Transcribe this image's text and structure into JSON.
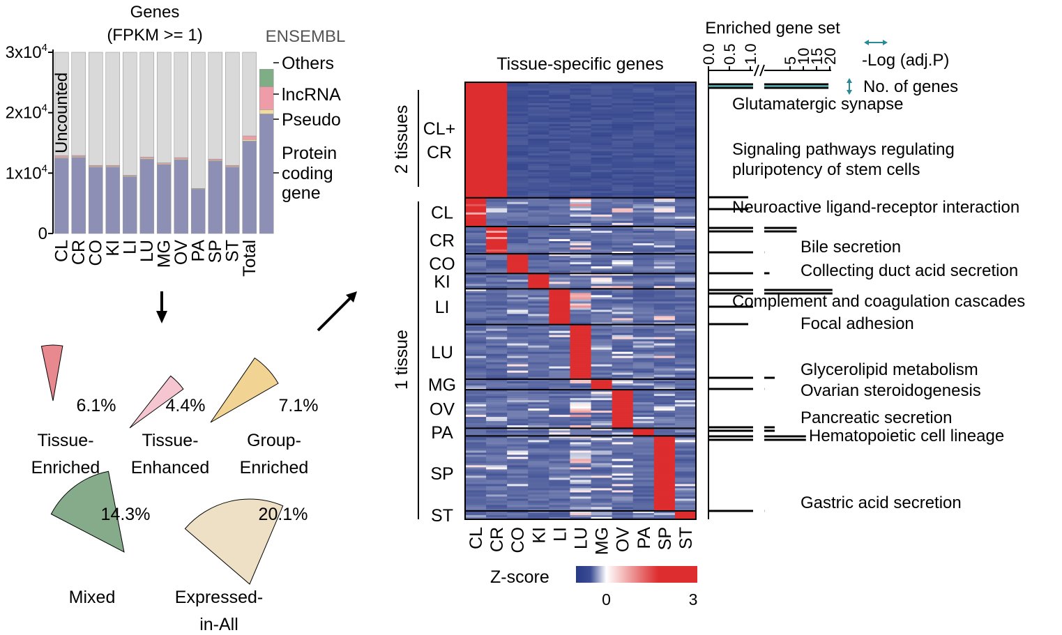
{
  "colors": {
    "protein": "#8e8fb4",
    "pseudo": "#f0dca0",
    "lncrna": "#ee9ca8",
    "others": "#7fad86",
    "uncounted": "#d9d9d9",
    "heat_low": "#283a86",
    "heat_mid": "#ffffff",
    "heat_high": "#de2d2f",
    "pathway_bar": "#4a9a9c",
    "tissue_enriched": "#e8888f",
    "tissue_enhanced": "#f5c6d0",
    "group_enriched": "#f1d494",
    "mixed": "#86ab8a",
    "expressed_in_all": "#eee0c4",
    "arrow_double_h": "#2a8a94",
    "arrow_double_v": "#2a8a94"
  },
  "panel_a": {
    "title_line1": "Genes",
    "title_line2": "(FPKM >= 1)",
    "source_label": "ENSEMBL",
    "y_ticks": [
      {
        "value": 30000,
        "base": "3x10",
        "exp": "4"
      },
      {
        "value": 20000,
        "base": "2x10",
        "exp": "4"
      },
      {
        "value": 10000,
        "base": "1x10",
        "exp": "4"
      },
      {
        "value": 0,
        "base": "0",
        "exp": ""
      }
    ],
    "uncounted_label": "Uncounted",
    "legend": {
      "others": "Others",
      "lncrna": "lncRNA",
      "pseudo": "Pseudo",
      "protein_line1": "Protein",
      "protein_line2": "coding",
      "protein_line3": "gene"
    }
  },
  "arrow_icons": {
    "down": "arrow-down-icon",
    "diagonal": "arrow-up-right-icon"
  },
  "categories": [
    {
      "key": "tissue_enriched",
      "label_line1": "Tissue-",
      "label_line2": "Enriched",
      "percent_label": "6.1%"
    },
    {
      "key": "tissue_enhanced",
      "label_line1": "Tissue-",
      "label_line2": "Enhanced",
      "percent_label": "4.4%"
    },
    {
      "key": "group_enriched",
      "label_line1": "Group-",
      "label_line2": "Enriched",
      "percent_label": "7.1%"
    },
    {
      "key": "mixed",
      "label_line1": "Mixed",
      "label_line2": "",
      "percent_label": "14.3%"
    },
    {
      "key": "expressed_in_all",
      "label_line1": "Expressed-",
      "label_line2": "in-All",
      "percent_label": "20.1%"
    }
  ],
  "heatmap": {
    "title": "Tissue-specific genes",
    "group_2tissues": "2 tissues",
    "group_1tissue": "1 tissue",
    "colorbar_label": "Z-score",
    "colorbar_ticks": [
      {
        "value": 0,
        "label": "0"
      },
      {
        "value": 3,
        "label": "3"
      }
    ]
  },
  "enrichment": {
    "title": "Enriched gene set",
    "legend_log": "-Log (adj.P)",
    "legend_genes": "No. of genes",
    "axis_left_ticks": [
      0.0,
      0.5,
      1.0
    ],
    "axis_left_labels": [
      "0.0",
      "0.5",
      "1.0"
    ],
    "axis_right_ticks": [
      5,
      10,
      15,
      20
    ],
    "axis_right_labels": [
      "5",
      "10",
      "15",
      "20"
    ]
  },
  "chart_data": [
    {
      "type": "bar",
      "subtype": "stacked",
      "title": "Genes (FPKM >= 1)",
      "categories": [
        "CL",
        "CR",
        "CO",
        "KI",
        "LI",
        "LU",
        "MG",
        "OV",
        "PA",
        "SP",
        "ST",
        "Total",
        "ENSEMBL"
      ],
      "ylim": [
        0,
        30000
      ],
      "series": [
        {
          "name": "Protein coding gene",
          "values": [
            12500,
            12600,
            11000,
            11000,
            9400,
            12300,
            11400,
            12200,
            7300,
            12000,
            11000,
            15300,
            19800
          ]
        },
        {
          "name": "Pseudo",
          "values": [
            150,
            120,
            120,
            120,
            110,
            140,
            120,
            140,
            80,
            120,
            120,
            250,
            700
          ]
        },
        {
          "name": "lncRNA",
          "values": [
            250,
            200,
            160,
            160,
            120,
            220,
            180,
            220,
            80,
            200,
            160,
            600,
            3800
          ]
        },
        {
          "name": "Others",
          "values": [
            0,
            0,
            0,
            0,
            0,
            0,
            0,
            0,
            0,
            0,
            0,
            0,
            2900
          ]
        },
        {
          "name": "Uncounted",
          "values": [
            17100,
            17080,
            18720,
            18720,
            20370,
            17340,
            18300,
            17440,
            22540,
            17680,
            18720,
            13850,
            0
          ]
        }
      ]
    },
    {
      "type": "pie",
      "note": "separate pie sectors with angular size proportional to percentage",
      "categories": [
        "Tissue-Enriched",
        "Tissue-Enhanced",
        "Group-Enriched",
        "Mixed",
        "Expressed-in-All"
      ],
      "values": [
        6.1,
        4.4,
        7.1,
        14.3,
        20.1
      ]
    },
    {
      "type": "heatmap",
      "title": "Tissue-specific genes",
      "columns": [
        "CL",
        "CR",
        "CO",
        "KI",
        "LI",
        "LU",
        "MG",
        "OV",
        "PA",
        "SP",
        "ST"
      ],
      "row_groups": [
        {
          "label": "CL+\nCR",
          "line1": "CL+",
          "line2": "CR",
          "high_cols": [
            "CL",
            "CR"
          ],
          "rel_size": 165
        },
        {
          "label": "CL",
          "high_cols": [
            "CL"
          ],
          "rel_size": 41
        },
        {
          "label": "CR",
          "high_cols": [
            "CR"
          ],
          "rel_size": 39
        },
        {
          "label": "CO",
          "high_cols": [
            "CO"
          ],
          "rel_size": 28
        },
        {
          "label": "KI",
          "high_cols": [
            "KI"
          ],
          "rel_size": 22
        },
        {
          "label": "LI",
          "high_cols": [
            "LI"
          ],
          "rel_size": 51
        },
        {
          "label": "LU",
          "high_cols": [
            "LU"
          ],
          "rel_size": 78
        },
        {
          "label": "MG",
          "high_cols": [
            "MG"
          ],
          "rel_size": 15
        },
        {
          "label": "OV",
          "high_cols": [
            "OV"
          ],
          "rel_size": 55
        },
        {
          "label": "PA",
          "high_cols": [
            "PA"
          ],
          "rel_size": 11
        },
        {
          "label": "SP",
          "high_cols": [
            "SP"
          ],
          "rel_size": 107
        },
        {
          "label": "ST",
          "high_cols": [
            "ST"
          ],
          "rel_size": 12
        }
      ],
      "colorscale": {
        "label": "Z-score",
        "min": 0,
        "max": 3
      }
    },
    {
      "type": "bar",
      "subtype": "horizontal, broken x-axis",
      "title": "Enriched gene set",
      "xlabel": "-Log (adj.P)",
      "axis_break": [
        1.0,
        5
      ],
      "rows": [
        {
          "group": "CL+CR",
          "pathway": "Glutamatergic synapse",
          "log_adj_p": 19.5,
          "n_genes": 3
        },
        {
          "group": "CL+CR",
          "pathway": "Signaling pathways regulating pluripotency of stem cells",
          "pathway_line1": "Signaling pathways regulating",
          "pathway_line2": "pluripotency of stem cells",
          "log_adj_p": 0,
          "n_genes": 0
        },
        {
          "group": "CL+CR",
          "pathway": "",
          "log_adj_p": 0.95,
          "n_genes": 0
        },
        {
          "group": "CL",
          "pathway": "Neuroactive ligand-receptor interaction",
          "log_adj_p": 0.95,
          "n_genes": 0
        },
        {
          "group": "CL",
          "pathway": "",
          "log_adj_p": 7.5,
          "n_genes": 3
        },
        {
          "group": "CR",
          "pathway": "Bile secretion",
          "log_adj_p": 1.05,
          "n_genes": 0
        },
        {
          "group": "CO",
          "pathway": "Collecting duct acid secretion",
          "log_adj_p": 2.5,
          "n_genes": 0
        },
        {
          "group": "KI",
          "pathway": "",
          "log_adj_p": 21.0,
          "n_genes": 3
        },
        {
          "group": "LI",
          "pathway": "Complement and coagulation cascades",
          "log_adj_p": 1.05,
          "n_genes": 0
        },
        {
          "group": "LU",
          "pathway": "Focal adhesion",
          "log_adj_p": 0.95,
          "n_genes": 0
        },
        {
          "group": "MG",
          "pathway": "Glycerolipid metabolism",
          "log_adj_p": 4.0,
          "n_genes": 0
        },
        {
          "group": "OV",
          "pathway": "Ovarian steroidogenesis",
          "log_adj_p": 1.05,
          "n_genes": 0
        },
        {
          "group": "PA",
          "pathway": "Pancreatic secretion",
          "log_adj_p": 4.0,
          "n_genes": 3
        },
        {
          "group": "SP",
          "pathway": "Hematopoietic cell lineage",
          "log_adj_p": 11.0,
          "n_genes": 3
        },
        {
          "group": "ST",
          "pathway": "Gastric acid secretion",
          "log_adj_p": 1.05,
          "n_genes": 0
        }
      ]
    }
  ]
}
